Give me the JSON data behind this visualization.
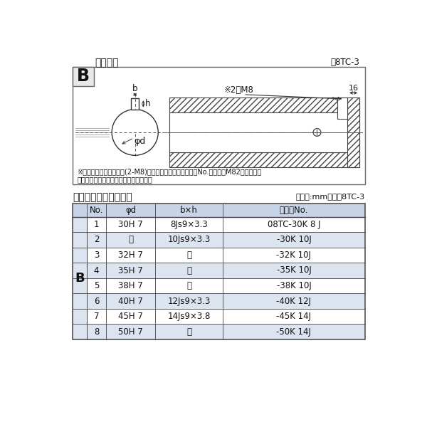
{
  "title_top": "軸穴形状",
  "fig_label": "図8TC-3",
  "note1": "※セットボルト用タップ(2-M8)が必要な場合は右記コードNo.の末尾にM82を付ける。",
  "note2": "（セットボルトは付属されています。）",
  "table_title": "軸穴形状コード一覧表",
  "table_unit": "（単位:mm）　表8TC-3",
  "col_headers": [
    "No.",
    "φd",
    "b×h",
    "コードNo."
  ],
  "rows": [
    [
      "1",
      "30H 7",
      "8Js9×3.3",
      "08TC-30K 8 J"
    ],
    [
      "2",
      "〃",
      "10Js9×3.3",
      "-30K 10J"
    ],
    [
      "3",
      "32H 7",
      "〃",
      "-32K 10J"
    ],
    [
      "4",
      "35H 7",
      "〃",
      "-35K 10J"
    ],
    [
      "5",
      "38H 7",
      "〃",
      "-38K 10J"
    ],
    [
      "6",
      "40H 7",
      "12Js9×3.3",
      "-40K 12J"
    ],
    [
      "7",
      "45H 7",
      "14Js9×3.8",
      "-45K 14J"
    ],
    [
      "8",
      "50H 7",
      "〃",
      "-50K 14J"
    ]
  ],
  "B_label": "B",
  "bg_color": "#ffffff",
  "box_bg": "#e8e8e8",
  "table_header_bg": "#c8d4e8",
  "table_row_even_bg": "#dce4f0",
  "table_row_odd_bg": "#ffffff",
  "border_color": "#444444",
  "text_color": "#111111",
  "diagram_border": "#666666"
}
